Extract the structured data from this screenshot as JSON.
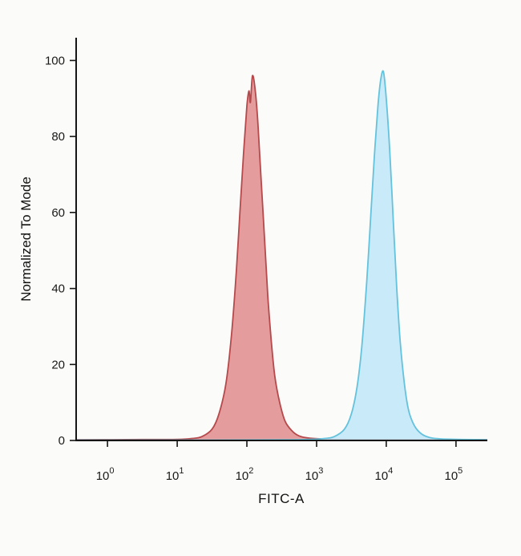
{
  "chart_data": {
    "type": "area",
    "title": "",
    "subtitle": "",
    "legend": [],
    "grid": false,
    "baseline": 0,
    "x_axis": {
      "label": "FITC-A",
      "scale": "log10",
      "domain": [
        -0.45,
        5.45
      ],
      "ticks": [
        {
          "base": "10",
          "exp": "0",
          "value": 0
        },
        {
          "base": "10",
          "exp": "1",
          "value": 1
        },
        {
          "base": "10",
          "exp": "2",
          "value": 2
        },
        {
          "base": "10",
          "exp": "3",
          "value": 3
        },
        {
          "base": "10",
          "exp": "4",
          "value": 4
        },
        {
          "base": "10",
          "exp": "5",
          "value": 5
        }
      ]
    },
    "y_axis": {
      "label": "Normalized To Mode",
      "domain": [
        0,
        106
      ],
      "ticks": [
        0,
        20,
        40,
        60,
        80,
        100
      ]
    },
    "series": [
      {
        "name": "red-population",
        "description": "control population peak near 1e2, mode height ~96",
        "fill": "#e18e90",
        "stroke": "#b5494c",
        "fill_opacity": 0.88,
        "points": [
          [
            -0.45,
            0.2
          ],
          [
            0.5,
            0.25
          ],
          [
            1.0,
            0.3
          ],
          [
            1.2,
            0.5
          ],
          [
            1.35,
            1
          ],
          [
            1.5,
            3
          ],
          [
            1.6,
            7
          ],
          [
            1.7,
            15
          ],
          [
            1.78,
            28
          ],
          [
            1.85,
            45
          ],
          [
            1.9,
            60
          ],
          [
            1.95,
            75
          ],
          [
            2.0,
            88
          ],
          [
            2.03,
            92
          ],
          [
            2.05,
            89
          ],
          [
            2.08,
            96
          ],
          [
            2.12,
            92
          ],
          [
            2.16,
            83
          ],
          [
            2.2,
            70
          ],
          [
            2.25,
            54
          ],
          [
            2.3,
            38
          ],
          [
            2.35,
            26
          ],
          [
            2.4,
            17
          ],
          [
            2.47,
            10
          ],
          [
            2.55,
            5
          ],
          [
            2.65,
            2.5
          ],
          [
            2.75,
            1.2
          ],
          [
            2.9,
            0.6
          ],
          [
            3.1,
            0.4
          ],
          [
            3.5,
            0.3
          ],
          [
            4.2,
            0.3
          ],
          [
            5.45,
            0.2
          ]
        ]
      },
      {
        "name": "blue-population",
        "description": "stained population peak near 1e4, mode height ~97",
        "fill": "#c3e8f7",
        "stroke": "#64c2dd",
        "fill_opacity": 0.9,
        "points": [
          [
            -0.45,
            0.1
          ],
          [
            1.5,
            0.1
          ],
          [
            2.5,
            0.2
          ],
          [
            2.9,
            0.3
          ],
          [
            3.1,
            0.5
          ],
          [
            3.25,
            1
          ],
          [
            3.4,
            3
          ],
          [
            3.5,
            7
          ],
          [
            3.58,
            14
          ],
          [
            3.65,
            25
          ],
          [
            3.72,
            42
          ],
          [
            3.78,
            60
          ],
          [
            3.83,
            75
          ],
          [
            3.88,
            88
          ],
          [
            3.92,
            95
          ],
          [
            3.96,
            97
          ],
          [
            4.0,
            90
          ],
          [
            4.05,
            76
          ],
          [
            4.1,
            58
          ],
          [
            4.15,
            40
          ],
          [
            4.2,
            26
          ],
          [
            4.26,
            15
          ],
          [
            4.32,
            8
          ],
          [
            4.4,
            4
          ],
          [
            4.5,
            1.8
          ],
          [
            4.62,
            0.8
          ],
          [
            4.8,
            0.4
          ],
          [
            5.45,
            0.2
          ]
        ]
      }
    ]
  }
}
